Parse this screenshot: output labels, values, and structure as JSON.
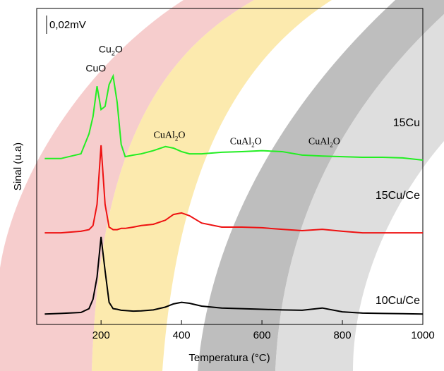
{
  "chart_data": {
    "type": "line",
    "x_label": "Temperatura (°C)",
    "y_label": "Sinal (u.a)",
    "scale_label": "0,02mV",
    "x": [
      60,
      100,
      150,
      170,
      180,
      190,
      200,
      210,
      220,
      230,
      240,
      250,
      260,
      280,
      300,
      330,
      360,
      380,
      400,
      420,
      450,
      500,
      550,
      600,
      650,
      700,
      750,
      800,
      850,
      900,
      950,
      1000
    ],
    "series": [
      {
        "name": "15Cu",
        "color": "#22ee22",
        "values": [
          52.5,
          52.5,
          54,
          60.3,
          65.8,
          75.4,
          68,
          69,
          75.9,
          78.6,
          70.3,
          57,
          53.1,
          53.6,
          54,
          55,
          56.3,
          55.8,
          54.7,
          54,
          54,
          54.5,
          54.7,
          55,
          54.7,
          53.6,
          53.3,
          53.1,
          52.9,
          52.9,
          52.7,
          52
        ]
      },
      {
        "name": "15Cu/Ce",
        "color": "#ee1111",
        "values": [
          29,
          29,
          29.5,
          30,
          31.3,
          38,
          56.7,
          38,
          30.8,
          30,
          30,
          30.4,
          30.4,
          30.8,
          31.3,
          31.7,
          33,
          34.8,
          35.3,
          34.4,
          32.1,
          30.8,
          30.8,
          30.6,
          30.1,
          29.7,
          30.1,
          29.5,
          29,
          29,
          29,
          29
        ]
      },
      {
        "name": "10Cu/Ce",
        "color": "#000000",
        "values": [
          3.3,
          3.5,
          3.8,
          5,
          8,
          15,
          27.7,
          17,
          7,
          5,
          4.8,
          4.5,
          4.4,
          4.2,
          4.3,
          4.6,
          5.5,
          6.5,
          7,
          6.7,
          5.8,
          5.2,
          5,
          4.8,
          4.6,
          4.5,
          5.2,
          4,
          3.6,
          3.5,
          3.4,
          3.3
        ]
      }
    ],
    "annotations": [
      {
        "parts": [
          "CuO"
        ],
        "x": 187,
        "y": 80
      },
      {
        "parts": [
          "Cu",
          "2",
          "O"
        ],
        "x": 224,
        "y": 86
      },
      {
        "parts": [
          "CuAl",
          "2",
          "O"
        ],
        "x": 370,
        "y": 59
      },
      {
        "parts": [
          "CuAl",
          "2",
          "O"
        ],
        "x": 560,
        "y": 57
      },
      {
        "parts": [
          "CuAl",
          "2",
          "O"
        ],
        "x": 755,
        "y": 57
      }
    ],
    "xlim": [
      40,
      1000
    ],
    "ylim": [
      0,
      100
    ],
    "xticks": [
      200,
      400,
      600,
      800,
      1000
    ]
  }
}
